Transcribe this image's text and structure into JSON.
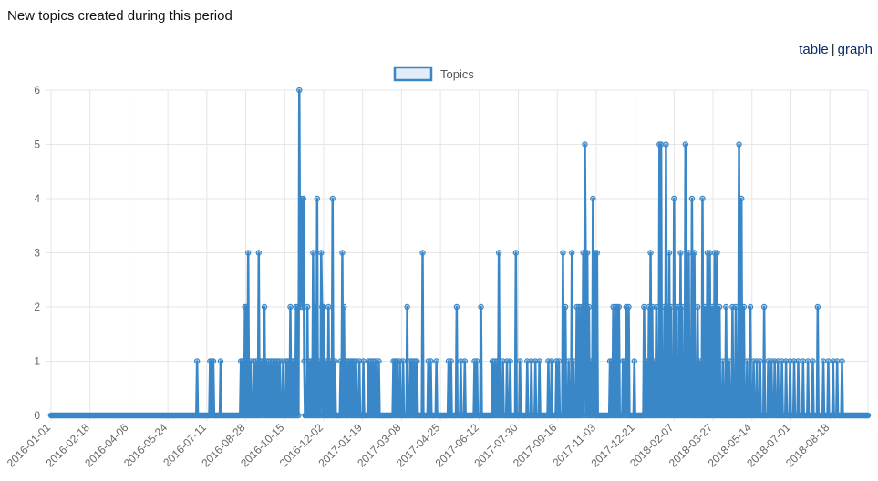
{
  "page": {
    "title": "New topics created during this period",
    "links": {
      "table": "table",
      "separator": "|",
      "graph": "graph"
    }
  },
  "chart_data": {
    "type": "line",
    "title": "",
    "xlabel": "",
    "ylabel": "",
    "ylim": [
      0,
      6
    ],
    "yticks": [
      0,
      1,
      2,
      3,
      4,
      5,
      6
    ],
    "grid": true,
    "legend_position": "top-center",
    "series_color": "#3a87c8",
    "x_start": "2016-01-01",
    "x_end": "2018-10-04",
    "xtick_labels": [
      "2016-01-01",
      "2016-02-18",
      "2016-04-06",
      "2016-05-24",
      "2016-07-11",
      "2016-08-28",
      "2016-10-15",
      "2016-12-02",
      "2017-01-19",
      "2017-03-08",
      "2017-04-25",
      "2017-06-12",
      "2017-07-30",
      "2017-09-16",
      "2017-11-03",
      "2017-12-21",
      "2018-02-07",
      "2018-03-27",
      "2018-05-14",
      "2018-07-01",
      "2018-08-18"
    ],
    "series": [
      {
        "name": "Topics",
        "points": [
          [
            "2016-06-29",
            1
          ],
          [
            "2016-07-15",
            1
          ],
          [
            "2016-07-17",
            1
          ],
          [
            "2016-07-19",
            1
          ],
          [
            "2016-07-28",
            1
          ],
          [
            "2016-08-22",
            1
          ],
          [
            "2016-08-24",
            1
          ],
          [
            "2016-08-27",
            2
          ],
          [
            "2016-08-29",
            2
          ],
          [
            "2016-08-31",
            3
          ],
          [
            "2016-09-03",
            1
          ],
          [
            "2016-09-07",
            1
          ],
          [
            "2016-09-10",
            1
          ],
          [
            "2016-09-13",
            3
          ],
          [
            "2016-09-15",
            1
          ],
          [
            "2016-09-17",
            1
          ],
          [
            "2016-09-20",
            2
          ],
          [
            "2016-09-22",
            1
          ],
          [
            "2016-09-25",
            1
          ],
          [
            "2016-09-28",
            1
          ],
          [
            "2016-10-01",
            1
          ],
          [
            "2016-10-03",
            1
          ],
          [
            "2016-10-06",
            1
          ],
          [
            "2016-10-09",
            1
          ],
          [
            "2016-10-13",
            1
          ],
          [
            "2016-10-17",
            1
          ],
          [
            "2016-10-19",
            1
          ],
          [
            "2016-10-22",
            2
          ],
          [
            "2016-10-24",
            1
          ],
          [
            "2016-10-26",
            1
          ],
          [
            "2016-10-29",
            2
          ],
          [
            "2016-10-31",
            2
          ],
          [
            "2016-11-02",
            6
          ],
          [
            "2016-11-03",
            2
          ],
          [
            "2016-11-04",
            3
          ],
          [
            "2016-11-05",
            4
          ],
          [
            "2016-11-06",
            2
          ],
          [
            "2016-11-07",
            4
          ],
          [
            "2016-11-08",
            1
          ],
          [
            "2016-11-12",
            2
          ],
          [
            "2016-11-14",
            1
          ],
          [
            "2016-11-16",
            1
          ],
          [
            "2016-11-19",
            3
          ],
          [
            "2016-11-21",
            2
          ],
          [
            "2016-11-24",
            4
          ],
          [
            "2016-11-26",
            1
          ],
          [
            "2016-11-29",
            3
          ],
          [
            "2016-11-30",
            2
          ],
          [
            "2016-12-02",
            2
          ],
          [
            "2016-12-05",
            1
          ],
          [
            "2016-12-08",
            2
          ],
          [
            "2016-12-11",
            1
          ],
          [
            "2016-12-13",
            4
          ],
          [
            "2016-12-16",
            1
          ],
          [
            "2016-12-23",
            1
          ],
          [
            "2016-12-25",
            3
          ],
          [
            "2016-12-27",
            2
          ],
          [
            "2016-12-30",
            1
          ],
          [
            "2017-01-02",
            1
          ],
          [
            "2017-01-04",
            1
          ],
          [
            "2017-01-06",
            1
          ],
          [
            "2017-01-09",
            1
          ],
          [
            "2017-01-11",
            1
          ],
          [
            "2017-01-15",
            1
          ],
          [
            "2017-01-20",
            1
          ],
          [
            "2017-01-26",
            1
          ],
          [
            "2017-01-29",
            1
          ],
          [
            "2017-02-01",
            1
          ],
          [
            "2017-02-04",
            1
          ],
          [
            "2017-02-08",
            1
          ],
          [
            "2017-02-26",
            1
          ],
          [
            "2017-02-28",
            1
          ],
          [
            "2017-03-02",
            1
          ],
          [
            "2017-03-06",
            1
          ],
          [
            "2017-03-10",
            1
          ],
          [
            "2017-03-15",
            2
          ],
          [
            "2017-03-19",
            1
          ],
          [
            "2017-03-21",
            1
          ],
          [
            "2017-03-24",
            1
          ],
          [
            "2017-03-27",
            1
          ],
          [
            "2017-04-03",
            3
          ],
          [
            "2017-04-10",
            1
          ],
          [
            "2017-04-13",
            1
          ],
          [
            "2017-04-20",
            1
          ],
          [
            "2017-05-05",
            1
          ],
          [
            "2017-05-08",
            1
          ],
          [
            "2017-05-15",
            2
          ],
          [
            "2017-05-20",
            1
          ],
          [
            "2017-05-25",
            1
          ],
          [
            "2017-06-06",
            1
          ],
          [
            "2017-06-09",
            1
          ],
          [
            "2017-06-14",
            2
          ],
          [
            "2017-06-28",
            1
          ],
          [
            "2017-07-01",
            1
          ],
          [
            "2017-07-04",
            1
          ],
          [
            "2017-07-06",
            3
          ],
          [
            "2017-07-11",
            1
          ],
          [
            "2017-07-16",
            1
          ],
          [
            "2017-07-20",
            1
          ],
          [
            "2017-07-27",
            3
          ],
          [
            "2017-08-01",
            1
          ],
          [
            "2017-08-10",
            1
          ],
          [
            "2017-08-15",
            1
          ],
          [
            "2017-08-20",
            1
          ],
          [
            "2017-08-25",
            1
          ],
          [
            "2017-09-05",
            1
          ],
          [
            "2017-09-09",
            1
          ],
          [
            "2017-09-15",
            1
          ],
          [
            "2017-09-18",
            1
          ],
          [
            "2017-09-23",
            3
          ],
          [
            "2017-09-26",
            2
          ],
          [
            "2017-09-30",
            1
          ],
          [
            "2017-10-04",
            3
          ],
          [
            "2017-10-06",
            1
          ],
          [
            "2017-10-10",
            2
          ],
          [
            "2017-10-13",
            2
          ],
          [
            "2017-10-16",
            2
          ],
          [
            "2017-10-18",
            3
          ],
          [
            "2017-10-20",
            5
          ],
          [
            "2017-10-21",
            3
          ],
          [
            "2017-10-23",
            3
          ],
          [
            "2017-10-25",
            2
          ],
          [
            "2017-10-27",
            1
          ],
          [
            "2017-10-30",
            4
          ],
          [
            "2017-11-02",
            3
          ],
          [
            "2017-11-04",
            3
          ],
          [
            "2017-11-20",
            1
          ],
          [
            "2017-11-22",
            1
          ],
          [
            "2017-11-24",
            2
          ],
          [
            "2017-11-27",
            2
          ],
          [
            "2017-11-29",
            2
          ],
          [
            "2017-12-01",
            2
          ],
          [
            "2017-12-06",
            1
          ],
          [
            "2017-12-08",
            1
          ],
          [
            "2017-12-10",
            2
          ],
          [
            "2017-12-13",
            2
          ],
          [
            "2017-12-20",
            1
          ],
          [
            "2018-01-01",
            2
          ],
          [
            "2018-01-03",
            1
          ],
          [
            "2018-01-05",
            1
          ],
          [
            "2018-01-07",
            2
          ],
          [
            "2018-01-09",
            3
          ],
          [
            "2018-01-11",
            2
          ],
          [
            "2018-01-13",
            1
          ],
          [
            "2018-01-16",
            2
          ],
          [
            "2018-01-18",
            1
          ],
          [
            "2018-01-20",
            5
          ],
          [
            "2018-01-22",
            5
          ],
          [
            "2018-01-24",
            1
          ],
          [
            "2018-01-26",
            2
          ],
          [
            "2018-01-28",
            5
          ],
          [
            "2018-01-30",
            2
          ],
          [
            "2018-02-01",
            3
          ],
          [
            "2018-02-03",
            2
          ],
          [
            "2018-02-05",
            1
          ],
          [
            "2018-02-07",
            4
          ],
          [
            "2018-02-09",
            2
          ],
          [
            "2018-02-11",
            1
          ],
          [
            "2018-02-13",
            2
          ],
          [
            "2018-02-15",
            3
          ],
          [
            "2018-02-17",
            2
          ],
          [
            "2018-02-19",
            1
          ],
          [
            "2018-02-21",
            5
          ],
          [
            "2018-02-23",
            2
          ],
          [
            "2018-02-25",
            3
          ],
          [
            "2018-02-27",
            1
          ],
          [
            "2018-03-01",
            4
          ],
          [
            "2018-03-04",
            3
          ],
          [
            "2018-03-08",
            2
          ],
          [
            "2018-03-11",
            1
          ],
          [
            "2018-03-14",
            4
          ],
          [
            "2018-03-17",
            2
          ],
          [
            "2018-03-20",
            3
          ],
          [
            "2018-03-23",
            3
          ],
          [
            "2018-03-26",
            2
          ],
          [
            "2018-03-29",
            3
          ],
          [
            "2018-04-01",
            3
          ],
          [
            "2018-04-04",
            2
          ],
          [
            "2018-04-08",
            1
          ],
          [
            "2018-04-12",
            2
          ],
          [
            "2018-04-16",
            1
          ],
          [
            "2018-04-20",
            2
          ],
          [
            "2018-04-24",
            2
          ],
          [
            "2018-04-28",
            5
          ],
          [
            "2018-05-01",
            4
          ],
          [
            "2018-05-04",
            2
          ],
          [
            "2018-05-08",
            1
          ],
          [
            "2018-05-12",
            2
          ],
          [
            "2018-05-16",
            1
          ],
          [
            "2018-05-20",
            1
          ],
          [
            "2018-05-24",
            1
          ],
          [
            "2018-05-29",
            2
          ],
          [
            "2018-06-03",
            1
          ],
          [
            "2018-06-07",
            1
          ],
          [
            "2018-06-11",
            1
          ],
          [
            "2018-06-15",
            1
          ],
          [
            "2018-06-20",
            1
          ],
          [
            "2018-06-25",
            1
          ],
          [
            "2018-06-30",
            1
          ],
          [
            "2018-07-05",
            1
          ],
          [
            "2018-07-10",
            1
          ],
          [
            "2018-07-16",
            1
          ],
          [
            "2018-07-22",
            1
          ],
          [
            "2018-07-28",
            1
          ],
          [
            "2018-08-03",
            2
          ],
          [
            "2018-08-10",
            1
          ],
          [
            "2018-08-16",
            1
          ],
          [
            "2018-08-22",
            1
          ],
          [
            "2018-08-27",
            1
          ],
          [
            "2018-09-02",
            1
          ]
        ]
      }
    ]
  }
}
